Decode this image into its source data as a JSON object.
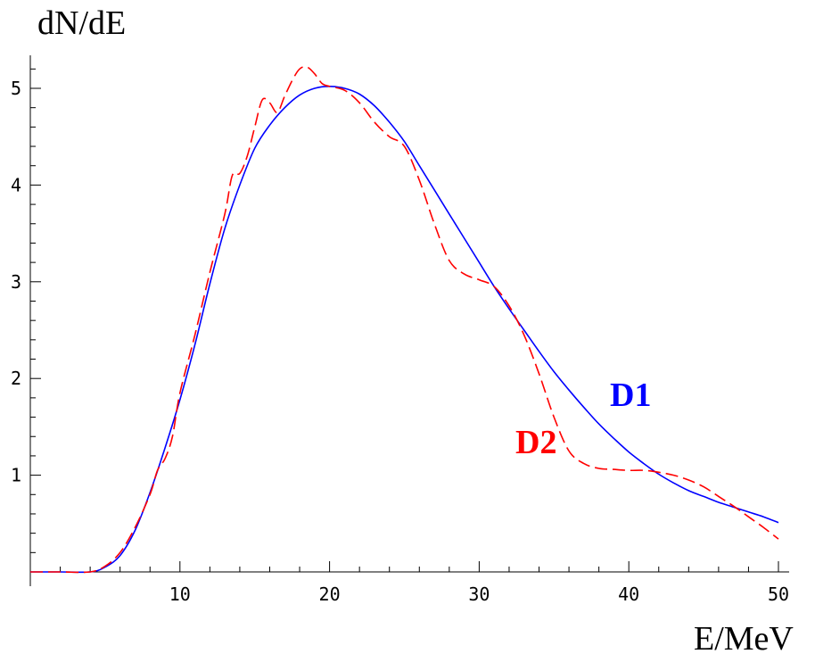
{
  "chart_data": {
    "type": "line",
    "xlabel": "E/MeV",
    "ylabel": "dN/dE",
    "xlim": [
      0,
      50
    ],
    "ylim": [
      0,
      5.2
    ],
    "x_ticks": [
      10,
      20,
      30,
      40,
      50
    ],
    "y_ticks": [
      1,
      2,
      3,
      4,
      5
    ],
    "grid": false,
    "series": [
      {
        "name": "D1",
        "color": "#0000ff",
        "style": "solid",
        "x": [
          0,
          2,
          4,
          5,
          6,
          7,
          8,
          9,
          10,
          11,
          12,
          13,
          14,
          15,
          16,
          17,
          18,
          19,
          20,
          21,
          22,
          23,
          24,
          25,
          26,
          27,
          28,
          29,
          30,
          31,
          32,
          33,
          34,
          35,
          36,
          37,
          38,
          39,
          40,
          41,
          42,
          43,
          44,
          45,
          46,
          47,
          48,
          49,
          50
        ],
        "y": [
          0.0,
          0.0,
          0.0,
          0.05,
          0.17,
          0.43,
          0.82,
          1.28,
          1.78,
          2.35,
          2.98,
          3.55,
          4.0,
          4.38,
          4.62,
          4.8,
          4.93,
          5.0,
          5.02,
          5.0,
          4.94,
          4.82,
          4.65,
          4.45,
          4.2,
          3.95,
          3.7,
          3.45,
          3.2,
          2.95,
          2.72,
          2.5,
          2.28,
          2.07,
          1.88,
          1.7,
          1.53,
          1.38,
          1.24,
          1.12,
          1.01,
          0.92,
          0.84,
          0.78,
          0.72,
          0.67,
          0.62,
          0.57,
          0.51
        ]
      },
      {
        "name": "D2",
        "color": "#ff0000",
        "style": "dashed",
        "x": [
          0,
          2,
          4,
          5,
          6,
          7,
          8,
          8.5,
          9,
          9.5,
          10,
          11,
          12,
          13,
          13.5,
          14,
          14.5,
          15,
          15.5,
          16,
          16.5,
          17,
          17.5,
          18,
          18.5,
          19,
          19.5,
          20,
          21,
          22,
          23,
          24,
          25,
          26,
          27,
          28,
          29,
          30,
          31,
          32,
          33,
          34,
          35,
          36,
          37,
          38,
          39,
          40,
          41,
          42,
          43,
          44,
          45,
          46,
          47,
          48,
          49,
          50
        ],
        "y": [
          0.0,
          0.0,
          0.0,
          0.06,
          0.2,
          0.46,
          0.8,
          1.05,
          1.17,
          1.4,
          1.85,
          2.45,
          3.1,
          3.7,
          4.1,
          4.12,
          4.3,
          4.6,
          4.88,
          4.85,
          4.75,
          4.92,
          5.08,
          5.2,
          5.22,
          5.15,
          5.05,
          5.02,
          4.98,
          4.85,
          4.65,
          4.5,
          4.4,
          4.05,
          3.6,
          3.22,
          3.08,
          3.02,
          2.95,
          2.75,
          2.45,
          2.05,
          1.6,
          1.25,
          1.12,
          1.07,
          1.06,
          1.05,
          1.05,
          1.03,
          1.0,
          0.95,
          0.88,
          0.78,
          0.68,
          0.57,
          0.46,
          0.34
        ]
      }
    ]
  }
}
